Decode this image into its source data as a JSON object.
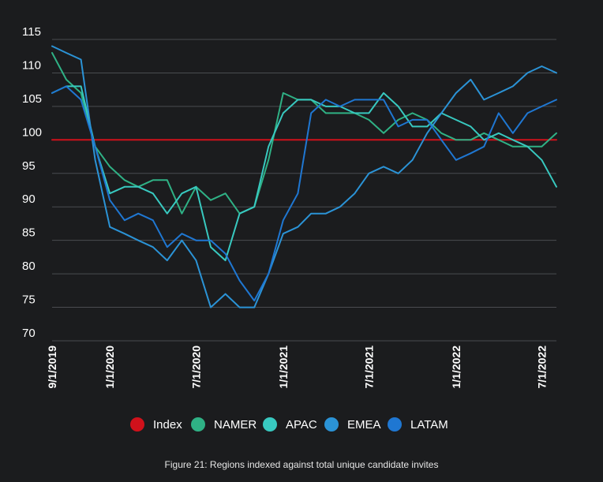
{
  "chart_data": {
    "type": "line",
    "title": "",
    "xlabel": "",
    "ylabel": "",
    "caption": "Figure 21: Regions indexed against total unique candidate invites",
    "ylim": [
      70,
      115
    ],
    "yticks": [
      70,
      75,
      80,
      85,
      90,
      95,
      100,
      105,
      110,
      115
    ],
    "x_start": "9/1/2019",
    "x_end": "8/1/2022",
    "xticks": [
      "9/1/2019",
      "1/1/2020",
      "7/1/2020",
      "1/1/2021",
      "7/1/2021",
      "1/1/2022",
      "7/1/2022"
    ],
    "grid": true,
    "legend_position": "bottom-center",
    "x": [
      "9/1/2019",
      "10/1/2019",
      "11/1/2019",
      "12/1/2019",
      "1/1/2020",
      "2/1/2020",
      "3/1/2020",
      "4/1/2020",
      "5/1/2020",
      "6/1/2020",
      "7/1/2020",
      "8/1/2020",
      "9/1/2020",
      "10/1/2020",
      "11/1/2020",
      "12/1/2020",
      "1/1/2021",
      "2/1/2021",
      "3/1/2021",
      "4/1/2021",
      "5/1/2021",
      "6/1/2021",
      "7/1/2021",
      "8/1/2021",
      "9/1/2021",
      "10/1/2021",
      "11/1/2021",
      "12/1/2021",
      "1/1/2022",
      "2/1/2022",
      "3/1/2022",
      "4/1/2022",
      "5/1/2022",
      "6/1/2022",
      "7/1/2022",
      "8/1/2022"
    ],
    "series": [
      {
        "name": "Index",
        "color": "#d0111b",
        "values": [
          100,
          100,
          100,
          100,
          100,
          100,
          100,
          100,
          100,
          100,
          100,
          100,
          100,
          100,
          100,
          100,
          100,
          100,
          100,
          100,
          100,
          100,
          100,
          100,
          100,
          100,
          100,
          100,
          100,
          100,
          100,
          100,
          100,
          100,
          100,
          100
        ]
      },
      {
        "name": "NAMER",
        "color": "#2fb185",
        "values": [
          113,
          109,
          107,
          99,
          96,
          94,
          93,
          94,
          94,
          89,
          93,
          91,
          92,
          89,
          90,
          97,
          107,
          106,
          106,
          104,
          104,
          104,
          103,
          101,
          103,
          104,
          103,
          101,
          100,
          100,
          101,
          100,
          99,
          99,
          99,
          101
        ]
      },
      {
        "name": "APAC",
        "color": "#38c9c0",
        "values": [
          107,
          108,
          108,
          99,
          92,
          93,
          93,
          92,
          89,
          92,
          93,
          84,
          82,
          89,
          90,
          99,
          104,
          106,
          106,
          105,
          105,
          104,
          104,
          107,
          105,
          102,
          102,
          104,
          103,
          102,
          100,
          101,
          100,
          99,
          97,
          93
        ]
      },
      {
        "name": "EMEA",
        "color": "#2b93d6",
        "values": [
          114,
          113,
          112,
          97,
          87,
          86,
          85,
          84,
          82,
          85,
          82,
          75,
          77,
          75,
          75,
          80,
          86,
          87,
          89,
          89,
          90,
          92,
          95,
          96,
          95,
          97,
          101,
          104,
          107,
          109,
          106,
          107,
          108,
          110,
          111,
          110
        ]
      },
      {
        "name": "LATAM",
        "color": "#1f77d2",
        "values": [
          107,
          108,
          106,
          99,
          91,
          88,
          89,
          88,
          84,
          86,
          85,
          85,
          83,
          79,
          76,
          80,
          88,
          92,
          104,
          106,
          105,
          106,
          106,
          106,
          102,
          103,
          103,
          100,
          97,
          98,
          99,
          104,
          101,
          104,
          105,
          106
        ]
      }
    ]
  }
}
